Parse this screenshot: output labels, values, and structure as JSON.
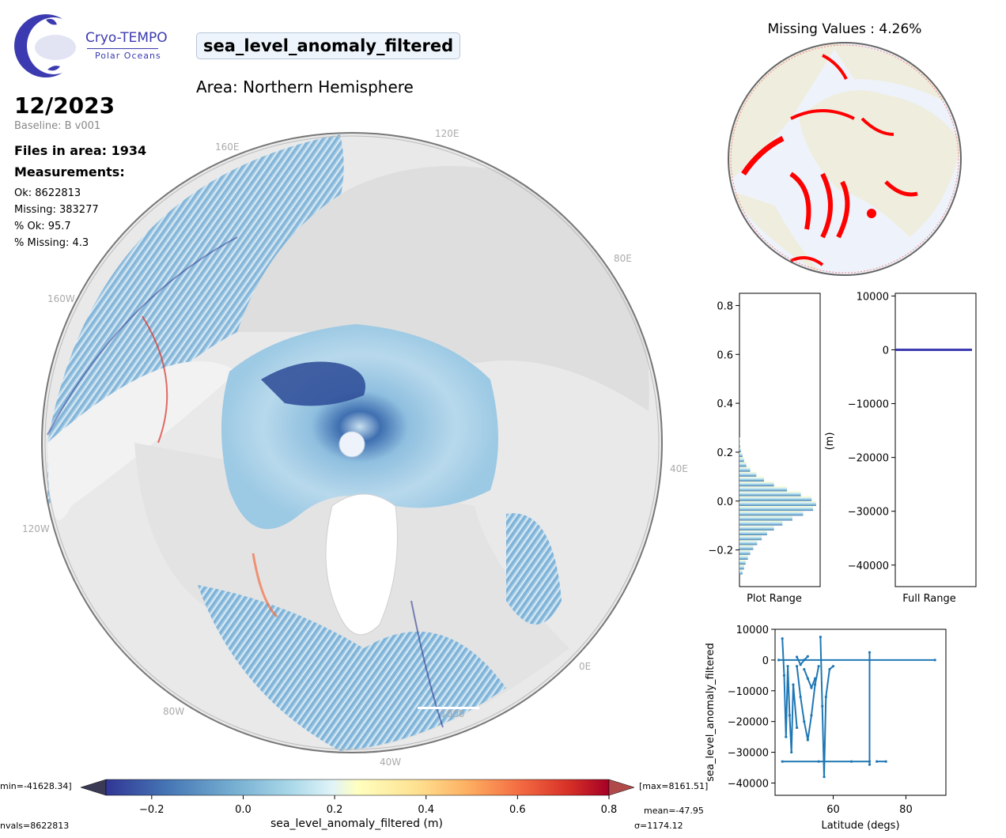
{
  "logo": {
    "title": "Cryo-TEMPO",
    "subtitle": "Polar Oceans"
  },
  "variable": "sea_level_anomaly_filtered",
  "area": "Area: Northern Hemisphere",
  "date": "12/2023",
  "baseline": "Baseline: B v001",
  "files_in_area": "Files in area: 1934",
  "measurements_label": "Measurements:",
  "stats": [
    "Ok: 8622813",
    "Missing: 383277",
    "% Ok: 95.7",
    "% Missing: 4.3"
  ],
  "map": {
    "grid_labels": [
      "120E",
      "160E",
      "80E",
      "160W",
      "40E",
      "120W",
      "0E",
      "80W",
      "40W"
    ],
    "scale_label": "1000"
  },
  "missing_map": {
    "title": "Missing Values : 4.26%"
  },
  "colors": {
    "accent": "#3b3ab0",
    "missing": "#ff0000",
    "land": "#efedde",
    "ocean": "#eef3fb",
    "series": "#1f77b4"
  },
  "colorbar": {
    "label": "sea_level_anomaly_filtered (m)",
    "min_text": "min=-41628.34]",
    "max_text": "[max=8161.51]",
    "nvals_text": "nvals=8622813",
    "mean_text": "mean=-47.95",
    "sigma_text": "σ=1174.12"
  },
  "chart_data": [
    {
      "type": "bar",
      "title": "",
      "xlabel": "Plot Range",
      "ylabel": "",
      "orientation": "horizontal",
      "ylim": [
        -0.35,
        0.85
      ],
      "y_ticks": [
        -0.2,
        0.0,
        0.2,
        0.4,
        0.6,
        0.8
      ],
      "bin_centers": [
        -0.29,
        -0.27,
        -0.25,
        -0.23,
        -0.21,
        -0.19,
        -0.17,
        -0.15,
        -0.13,
        -0.11,
        -0.09,
        -0.07,
        -0.05,
        -0.03,
        -0.01,
        0.01,
        0.03,
        0.05,
        0.07,
        0.09,
        0.11,
        0.13,
        0.15,
        0.17,
        0.19,
        0.21,
        0.23,
        0.25
      ],
      "counts": [
        0.04,
        0.06,
        0.08,
        0.11,
        0.14,
        0.18,
        0.23,
        0.29,
        0.36,
        0.45,
        0.56,
        0.69,
        0.83,
        0.96,
        1.0,
        0.94,
        0.8,
        0.62,
        0.45,
        0.32,
        0.22,
        0.14,
        0.09,
        0.06,
        0.04,
        0.02,
        0.01,
        0.005
      ]
    },
    {
      "type": "bar",
      "title": "",
      "xlabel": "Full Range",
      "ylabel": "(m)",
      "ylim": [
        -44000,
        10500
      ],
      "y_ticks": [
        10000,
        0,
        -10000,
        -20000,
        -30000,
        -40000
      ]
    },
    {
      "type": "scatter",
      "title": "",
      "xlabel": "Latitude (degs)",
      "ylabel": "sea_level_anomaly_filtered",
      "xlim": [
        44,
        91
      ],
      "ylim": [
        -44000,
        10000
      ],
      "x_ticks": [
        60,
        80
      ],
      "y_ticks": [
        10000,
        0,
        -10000,
        -20000,
        -30000,
        -40000
      ],
      "series": [
        {
          "points": [
            [
              45,
              0
            ],
            [
              88,
              0
            ]
          ]
        },
        {
          "points": [
            [
              46,
              7000
            ],
            [
              46.5,
              -5000
            ],
            [
              47,
              -25000
            ],
            [
              47.5,
              -2000
            ],
            [
              48,
              -18000
            ],
            [
              48.5,
              -30000
            ],
            [
              49,
              -8000
            ],
            [
              50,
              -22000
            ]
          ]
        },
        {
          "points": [
            [
              50,
              -2000
            ],
            [
              51,
              -12000
            ],
            [
              52,
              -20000
            ],
            [
              53,
              -26000
            ],
            [
              54,
              -18000
            ],
            [
              55,
              -8000
            ],
            [
              56,
              -2000
            ]
          ]
        },
        {
          "points": [
            [
              52,
              -3000
            ],
            [
              53,
              -6000
            ],
            [
              54,
              -9000
            ],
            [
              55,
              -6000
            ]
          ]
        },
        {
          "points": [
            [
              56.5,
              7500
            ],
            [
              57,
              -15000
            ],
            [
              57.5,
              -38000
            ],
            [
              58,
              -12000
            ],
            [
              59,
              -3000
            ],
            [
              60,
              -2000
            ]
          ]
        },
        {
          "points": [
            [
              46,
              -33000
            ],
            [
              56,
              -33000
            ],
            [
              65,
              -33000
            ],
            [
              70,
              -33000
            ]
          ]
        },
        {
          "points": [
            [
              70,
              2500
            ],
            [
              70,
              -34000
            ]
          ]
        },
        {
          "points": [
            [
              72,
              -33000
            ],
            [
              74.5,
              -33000
            ]
          ]
        },
        {
          "points": [
            [
              50,
              1000
            ],
            [
              51,
              -1500
            ],
            [
              52,
              0
            ],
            [
              53,
              1200
            ]
          ]
        }
      ]
    }
  ],
  "colorbar_data": {
    "type": "colorbar",
    "range": [
      -0.3,
      0.8
    ],
    "ticks": [
      -0.2,
      0.0,
      0.2,
      0.4,
      0.6,
      0.8
    ]
  }
}
